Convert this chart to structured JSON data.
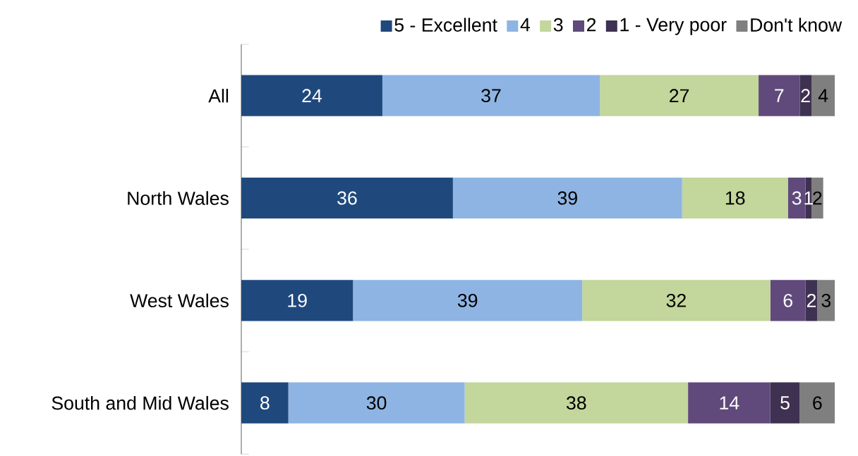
{
  "chart_data": {
    "type": "bar",
    "orientation": "horizontal",
    "stacked": true,
    "data_labels": true,
    "legend": "top",
    "grid": false,
    "categories": [
      "All",
      "North Wales",
      "West Wales",
      "South and Mid Wales"
    ],
    "series": [
      {
        "name": "5 - Excellent",
        "color": "#1f497d",
        "values": [
          24,
          36,
          19,
          8
        ]
      },
      {
        "name": "4",
        "color": "#8eb4e3",
        "values": [
          37,
          39,
          39,
          30
        ]
      },
      {
        "name": "3",
        "color": "#c3d69b",
        "values": [
          27,
          18,
          32,
          38
        ]
      },
      {
        "name": "2",
        "color": "#604a7b",
        "values": [
          7,
          3,
          6,
          14
        ]
      },
      {
        "name": "1 - Very poor",
        "color": "#3f3151",
        "values": [
          2,
          1,
          2,
          5
        ]
      },
      {
        "name": "Don't know",
        "color": "#7f7f7f",
        "values": [
          4,
          2,
          3,
          6
        ]
      }
    ]
  }
}
